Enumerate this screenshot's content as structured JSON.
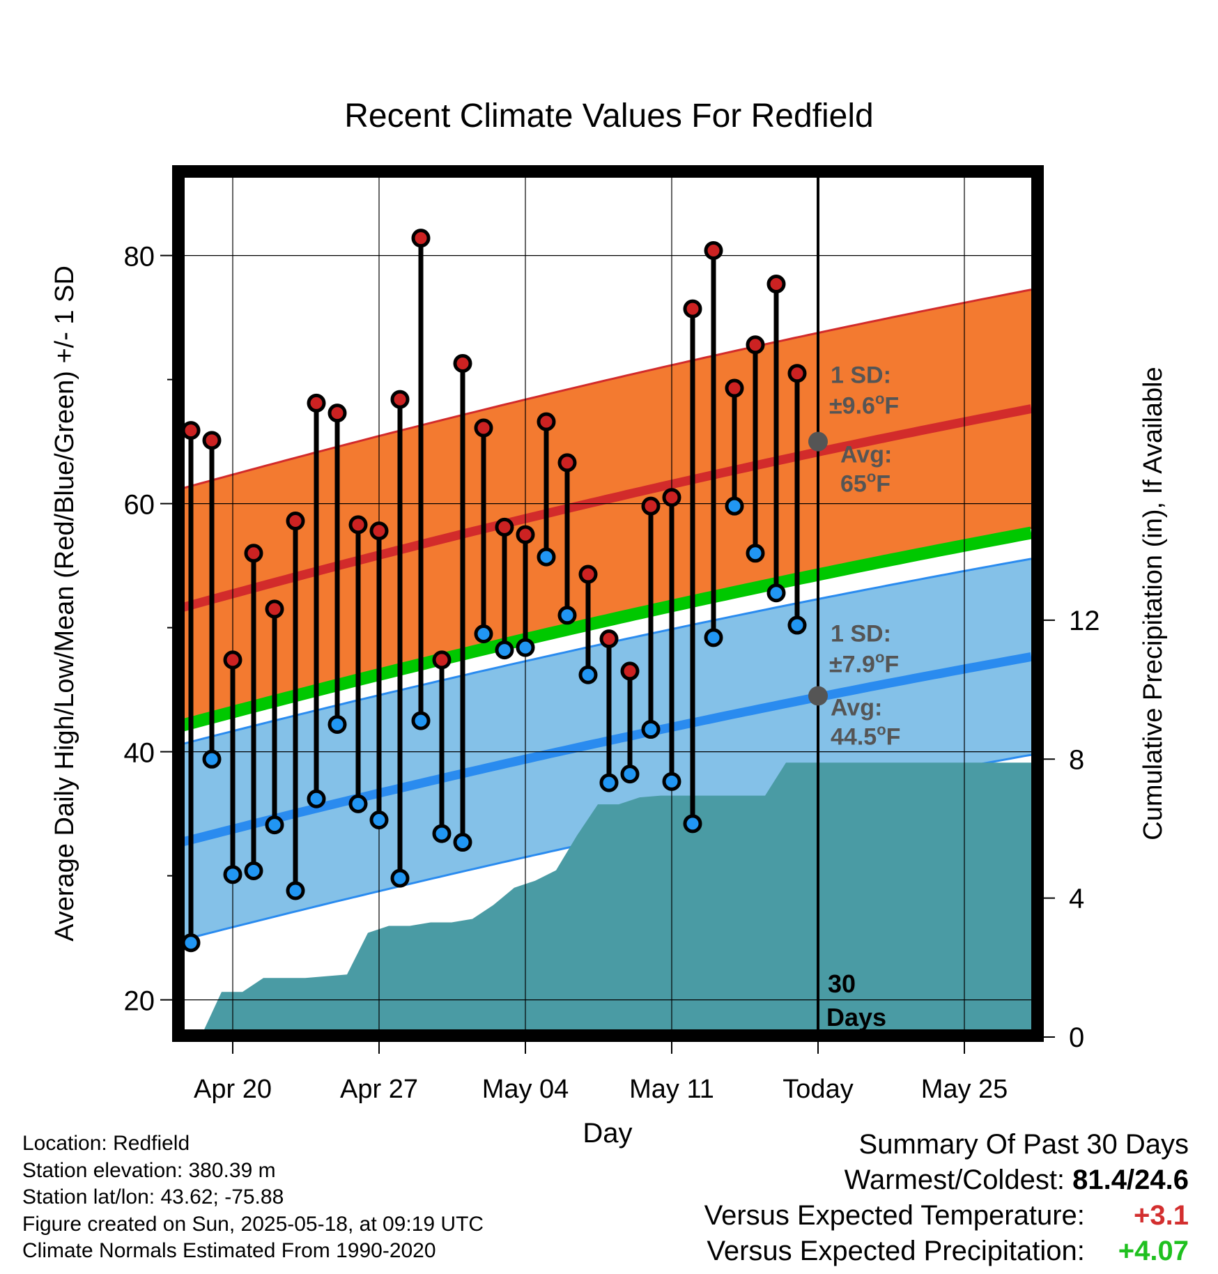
{
  "chart_data": {
    "type": "line",
    "title": "Recent Climate Values For Redfield",
    "xlabel": "Day",
    "ylabel": "Average Daily High/Low/Mean (Red/Blue/Green) +/- 1 SD",
    "y2label": "Cumulative Precipitation (in), If Available",
    "xticks": [
      "Apr 20",
      "Apr 27",
      "May 04",
      "May 11",
      "Today",
      "May 25"
    ],
    "yticks": [
      20,
      40,
      60,
      80
    ],
    "y2ticks": [
      0,
      4,
      8,
      12
    ],
    "ylim": [
      17,
      87
    ],
    "y2lim": [
      0,
      25
    ],
    "grid": true,
    "days": [
      "Apr 18",
      "Apr 19",
      "Apr 20",
      "Apr 21",
      "Apr 22",
      "Apr 23",
      "Apr 24",
      "Apr 25",
      "Apr 26",
      "Apr 27",
      "Apr 28",
      "Apr 29",
      "Apr 30",
      "May 01",
      "May 02",
      "May 03",
      "May 04",
      "May 05",
      "May 06",
      "May 07",
      "May 08",
      "May 09",
      "May 10",
      "May 11",
      "May 12",
      "May 13",
      "May 14",
      "May 15",
      "May 16",
      "May 17"
    ],
    "daily_high": [
      65.9,
      65.1,
      47.4,
      56.0,
      51.5,
      58.6,
      68.1,
      67.3,
      58.3,
      57.8,
      68.4,
      81.4,
      47.4,
      71.3,
      66.1,
      58.1,
      57.5,
      66.6,
      63.3,
      54.3,
      49.1,
      46.5,
      59.8,
      60.5,
      75.7,
      80.4,
      69.3,
      72.8,
      77.7,
      70.5
    ],
    "daily_low": [
      24.6,
      39.4,
      30.1,
      30.4,
      34.1,
      28.8,
      36.2,
      42.2,
      35.8,
      34.5,
      29.8,
      42.5,
      33.4,
      32.7,
      49.5,
      48.2,
      48.4,
      55.7,
      51.0,
      46.2,
      37.5,
      38.2,
      41.8,
      37.6,
      34.2,
      49.2,
      59.8,
      56.0,
      52.8,
      50.2
    ],
    "normal_high": {
      "name": "Average high",
      "start": 51.6,
      "end": 67.7,
      "today_avg": "65",
      "sd": "9.6",
      "sd_label": "1 SD:",
      "sd_value": "±9.6°F",
      "avg_label": "Avg:",
      "avg_value": "65°F"
    },
    "normal_low": {
      "name": "Average low",
      "start": 32.7,
      "end": 47.7,
      "today_avg": "44.5",
      "sd": "7.9",
      "sd_label": "1 SD:",
      "sd_value": "±7.9°F",
      "avg_label": "Avg:",
      "avg_value": "44.5°F"
    },
    "normal_mean": {
      "name": "Average mean",
      "start": 42.1,
      "end": 57.7
    },
    "precip_cumulative": {
      "days": [
        "Apr 18",
        "Apr 19",
        "Apr 20",
        "Apr 21",
        "Apr 22",
        "Apr 23",
        "Apr 24",
        "Apr 25",
        "Apr 26",
        "Apr 27",
        "Apr 28",
        "Apr 29",
        "Apr 30",
        "May 01",
        "May 02",
        "May 03",
        "May 04",
        "May 05",
        "May 06",
        "May 07",
        "May 08",
        "May 09",
        "May 10",
        "May 11",
        "May 12",
        "May 13",
        "May 14",
        "May 15",
        "May 16",
        "May 17",
        "May 18",
        "May 28"
      ],
      "values": [
        0.0,
        1.3,
        1.3,
        1.7,
        1.7,
        1.7,
        1.75,
        1.8,
        3.0,
        3.2,
        3.2,
        3.3,
        3.3,
        3.4,
        3.8,
        4.3,
        4.5,
        4.8,
        5.8,
        6.7,
        6.7,
        6.9,
        6.95,
        6.95,
        6.95,
        6.95,
        6.95,
        6.95,
        7.9,
        7.9,
        7.9,
        7.9
      ]
    },
    "today_marker": {
      "label_line1": "30",
      "label_line2": "Days"
    },
    "colors": {
      "high_band": "#f37a30",
      "high_line": "#d22b2b",
      "low_band": "#84c1e8",
      "low_line": "#2a8bef",
      "mean_line": "#00c800",
      "precip": "#4a9ba4",
      "high_dot": "#cc2222",
      "low_dot": "#2196f3",
      "avg_dot": "#555555",
      "annotation_text": "#555555"
    }
  },
  "info": {
    "location": "Location: Redfield",
    "elevation": "Station elevation: 380.39 m",
    "latlon": "Station lat/lon: 43.62; -75.88",
    "created": "Figure created on Sun, 2025-05-18, at 09:19 UTC",
    "normals": "Climate Normals Estimated From 1990-2020"
  },
  "summary": {
    "title": "Summary Of Past 30 Days",
    "warmest_label": "Warmest/Coldest:",
    "warmest_value": "81.4/24.6",
    "temp_label": "Versus Expected Temperature:",
    "temp_value": "+3.1",
    "precip_label": "Versus Expected Precipitation:",
    "precip_value": "+4.07"
  }
}
